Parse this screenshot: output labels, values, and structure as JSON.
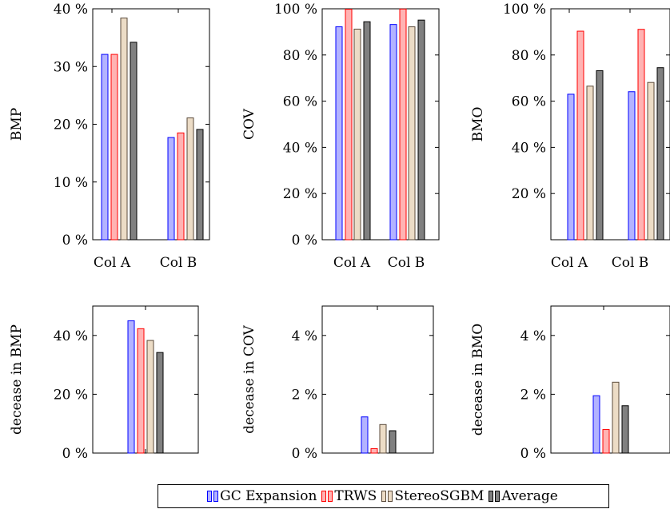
{
  "legend": {
    "items": [
      {
        "label": "GC Expansion",
        "fill": "#b3b3ff",
        "stroke": "#0000ff"
      },
      {
        "label": "TRWS",
        "fill": "#ffb3b3",
        "stroke": "#ff0000"
      },
      {
        "label": "StereoSGBM",
        "fill": "#ecdcc6",
        "stroke": "#5a4a3a"
      },
      {
        "label": "Average",
        "fill": "#808080",
        "stroke": "#000000"
      }
    ]
  },
  "chart_data": [
    {
      "type": "bar",
      "ylabel": "BMP",
      "categories": [
        "Col A",
        "Col B"
      ],
      "ylim": [
        0,
        40
      ],
      "yticks": [
        "0 %",
        "10 %",
        "20 %",
        "30 %",
        "40 %"
      ],
      "series": [
        {
          "name": "GC Expansion",
          "values": [
            32.1,
            17.7
          ]
        },
        {
          "name": "TRWS",
          "values": [
            32.1,
            18.5
          ]
        },
        {
          "name": "StereoSGBM",
          "values": [
            38.4,
            21.1
          ]
        },
        {
          "name": "Average",
          "values": [
            34.2,
            19.1
          ]
        }
      ]
    },
    {
      "type": "bar",
      "ylabel": "COV",
      "categories": [
        "Col A",
        "Col B"
      ],
      "ylim": [
        0,
        100
      ],
      "yticks": [
        "0 %",
        "20 %",
        "40 %",
        "60 %",
        "80 %",
        "100 %"
      ],
      "series": [
        {
          "name": "GC Expansion",
          "values": [
            92.2,
            93.2
          ]
        },
        {
          "name": "TRWS",
          "values": [
            99.8,
            99.9
          ]
        },
        {
          "name": "StereoSGBM",
          "values": [
            91.2,
            92.2
          ]
        },
        {
          "name": "Average",
          "values": [
            94.4,
            95.1
          ]
        }
      ]
    },
    {
      "type": "bar",
      "ylabel": "BMO",
      "categories": [
        "Col A",
        "Col B"
      ],
      "ylim": [
        0,
        100
      ],
      "yticks": [
        "20 %",
        "40 %",
        "60 %",
        "80 %",
        "100 %"
      ],
      "series": [
        {
          "name": "GC Expansion",
          "values": [
            63,
            64.1
          ]
        },
        {
          "name": "TRWS",
          "values": [
            90.3,
            91.1
          ]
        },
        {
          "name": "StereoSGBM",
          "values": [
            66.5,
            68.1
          ]
        },
        {
          "name": "Average",
          "values": [
            73.2,
            74.5
          ]
        }
      ]
    },
    {
      "type": "bar",
      "ylabel": "decease in BMP",
      "categories": [
        ""
      ],
      "ylim": [
        0,
        50
      ],
      "yticks": [
        "0 %",
        "20 %",
        "40 %"
      ],
      "series": [
        {
          "name": "GC Expansion",
          "values": [
            45
          ]
        },
        {
          "name": "TRWS",
          "values": [
            42.3
          ]
        },
        {
          "name": "StereoSGBM",
          "values": [
            38.3
          ]
        },
        {
          "name": "Average",
          "values": [
            34.2
          ]
        }
      ]
    },
    {
      "type": "bar",
      "ylabel": "decease in COV",
      "categories": [
        ""
      ],
      "ylim": [
        0,
        5
      ],
      "yticks": [
        "0 %",
        "2 %",
        "4 %"
      ],
      "series": [
        {
          "name": "GC Expansion",
          "values": [
            1.23
          ]
        },
        {
          "name": "TRWS",
          "values": [
            0.15
          ]
        },
        {
          "name": "StereoSGBM",
          "values": [
            0.97
          ]
        },
        {
          "name": "Average",
          "values": [
            0.76
          ]
        }
      ]
    },
    {
      "type": "bar",
      "ylabel": "decease in BMO",
      "categories": [
        ""
      ],
      "ylim": [
        0,
        5
      ],
      "yticks": [
        "0 %",
        "2 %",
        "4 %"
      ],
      "series": [
        {
          "name": "GC Expansion",
          "values": [
            1.95
          ]
        },
        {
          "name": "TRWS",
          "values": [
            0.8
          ]
        },
        {
          "name": "StereoSGBM",
          "values": [
            2.41
          ]
        },
        {
          "name": "Average",
          "values": [
            1.61
          ]
        }
      ]
    }
  ]
}
